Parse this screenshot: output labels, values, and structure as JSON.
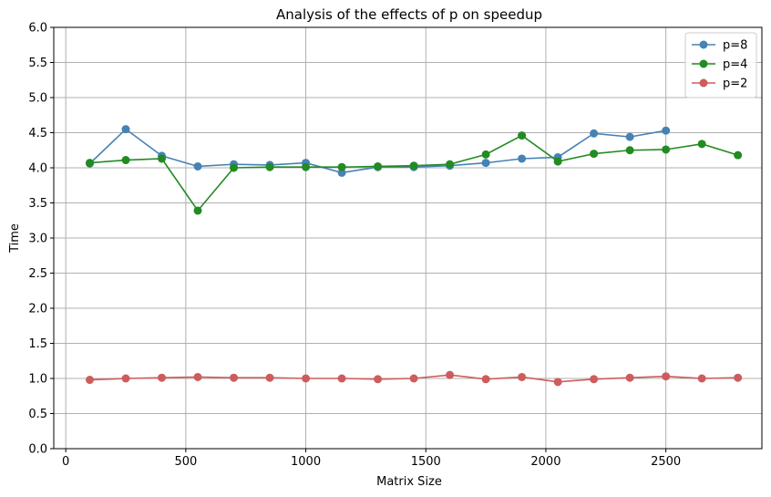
{
  "chart_data": {
    "type": "line",
    "title": "Analysis of the effects of p on speedup",
    "xlabel": "Matrix Size",
    "ylabel": "Time",
    "xlim": [
      -50,
      2900
    ],
    "ylim": [
      0.0,
      6.0
    ],
    "xticks": [
      0,
      500,
      1000,
      1500,
      2000,
      2500
    ],
    "yticks": [
      0.0,
      0.5,
      1.0,
      1.5,
      2.0,
      2.5,
      3.0,
      3.5,
      4.0,
      4.5,
      5.0,
      5.5,
      6.0
    ],
    "xtick_labels": [
      "0",
      "500",
      "1000",
      "1500",
      "2000",
      "2500"
    ],
    "ytick_labels": [
      "0.0",
      "0.5",
      "1.0",
      "1.5",
      "2.0",
      "2.5",
      "3.0",
      "3.5",
      "4.0",
      "4.5",
      "5.0",
      "5.5",
      "6.0"
    ],
    "grid": true,
    "legend_position": "top-right",
    "series": [
      {
        "name": "p=8",
        "color": "#4682b4",
        "x": [
          100,
          250,
          400,
          550,
          700,
          850,
          1000,
          1150,
          1300,
          1450,
          1600,
          1750,
          1900,
          2050,
          2200,
          2350,
          2500
        ],
        "y": [
          4.06,
          4.55,
          4.17,
          4.02,
          4.05,
          4.04,
          4.07,
          3.93,
          4.01,
          4.01,
          4.03,
          4.07,
          4.13,
          4.15,
          4.49,
          4.44,
          4.53
        ]
      },
      {
        "name": "p=4",
        "color": "#228b22",
        "x": [
          100,
          250,
          400,
          550,
          700,
          850,
          1000,
          1150,
          1300,
          1450,
          1600,
          1750,
          1900,
          2050,
          2200,
          2350,
          2500,
          2650,
          2800
        ],
        "y": [
          4.07,
          4.11,
          4.13,
          3.39,
          4.0,
          4.01,
          4.01,
          4.01,
          4.02,
          4.03,
          4.05,
          4.19,
          4.46,
          4.09,
          4.2,
          4.25,
          4.26,
          4.34,
          4.18
        ]
      },
      {
        "name": "p=2",
        "color": "#cd5c5c",
        "x": [
          100,
          250,
          400,
          550,
          700,
          850,
          1000,
          1150,
          1300,
          1450,
          1600,
          1750,
          1900,
          2050,
          2200,
          2350,
          2500,
          2650,
          2800
        ],
        "y": [
          0.98,
          1.0,
          1.01,
          1.02,
          1.01,
          1.01,
          1.0,
          1.0,
          0.99,
          1.0,
          1.05,
          0.99,
          1.02,
          0.95,
          0.99,
          1.01,
          1.03,
          1.0,
          1.01
        ]
      }
    ]
  }
}
